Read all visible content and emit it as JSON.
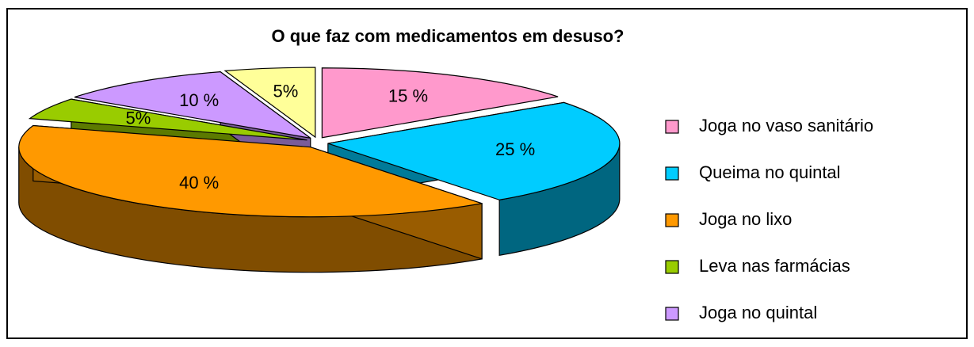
{
  "chart_data": {
    "type": "pie",
    "title": "O que faz com medicamentos em desuso?",
    "categories": [
      "Joga no vaso sanitário",
      "Queima no quintal",
      "Joga no lixo",
      "Leva nas farmácias",
      "Joga no quintal",
      null
    ],
    "values": [
      15,
      25,
      40,
      5,
      10,
      5
    ],
    "value_labels": [
      "15 %",
      "25 %",
      "40 %",
      "5%",
      "10 %",
      "5%"
    ],
    "colors": [
      "#ff99cc",
      "#00ccff",
      "#ff9900",
      "#99cc00",
      "#cc99ff",
      "#ffff99"
    ],
    "legend": "right",
    "three_d": true
  }
}
